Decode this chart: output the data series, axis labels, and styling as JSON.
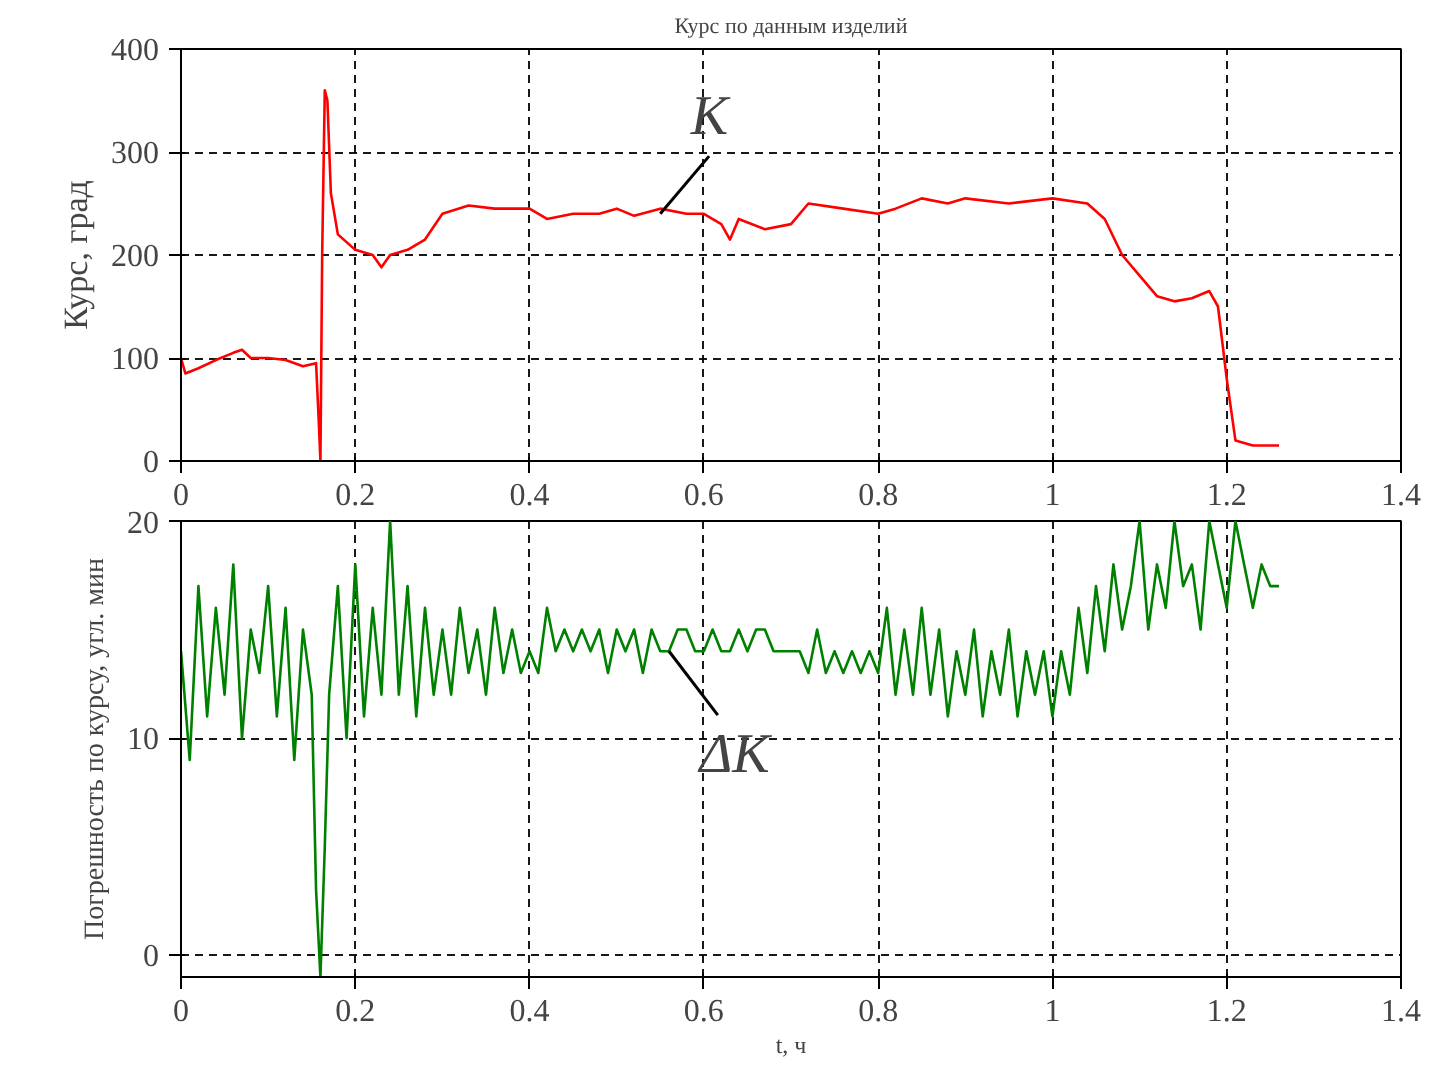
{
  "chart_data": [
    {
      "type": "line",
      "title": "Курс по данным изделий",
      "ylabel": "Курс, град",
      "color": "#ff0000",
      "grid": true,
      "line_style": "solid",
      "xlim": [
        0,
        1.4
      ],
      "ylim": [
        0,
        400
      ],
      "xticks": [
        0,
        0.2,
        0.4,
        0.6,
        0.8,
        1,
        1.2,
        1.4
      ],
      "yticks": [
        0,
        100,
        200,
        300,
        400
      ],
      "annotations": [
        {
          "text": "K",
          "x": 0.55,
          "y": 240
        }
      ],
      "x": [
        0,
        0.005,
        0.02,
        0.04,
        0.06,
        0.07,
        0.08,
        0.1,
        0.12,
        0.14,
        0.155,
        0.158,
        0.16,
        0.162,
        0.165,
        0.168,
        0.172,
        0.18,
        0.2,
        0.22,
        0.23,
        0.24,
        0.26,
        0.28,
        0.3,
        0.33,
        0.36,
        0.4,
        0.42,
        0.45,
        0.48,
        0.5,
        0.52,
        0.55,
        0.58,
        0.6,
        0.62,
        0.63,
        0.64,
        0.67,
        0.7,
        0.72,
        0.76,
        0.8,
        0.82,
        0.85,
        0.88,
        0.9,
        0.95,
        1.0,
        1.04,
        1.06,
        1.08,
        1.1,
        1.12,
        1.14,
        1.16,
        1.18,
        1.19,
        1.2,
        1.21,
        1.23,
        1.26
      ],
      "values": [
        100,
        85,
        90,
        98,
        105,
        108,
        100,
        100,
        98,
        92,
        95,
        40,
        0,
        200,
        360,
        350,
        260,
        220,
        205,
        200,
        188,
        200,
        205,
        215,
        240,
        248,
        245,
        245,
        235,
        240,
        240,
        245,
        238,
        245,
        240,
        240,
        230,
        215,
        235,
        225,
        230,
        250,
        245,
        240,
        245,
        255,
        250,
        255,
        250,
        255,
        250,
        235,
        200,
        180,
        160,
        155,
        158,
        165,
        150,
        80,
        20,
        15,
        15
      ]
    },
    {
      "type": "line",
      "xlabel": "t, ч",
      "ylabel": "Погрешность по курсу, угл. мин",
      "color": "#008000",
      "grid": true,
      "line_style": "solid",
      "xlim": [
        0,
        1.4
      ],
      "ylim": [
        -1,
        20
      ],
      "xticks": [
        0,
        0.2,
        0.4,
        0.6,
        0.8,
        1,
        1.2,
        1.4
      ],
      "yticks": [
        0,
        10,
        20
      ],
      "annotations": [
        {
          "text": "ΔK",
          "x": 0.56,
          "y": 14
        }
      ],
      "x": [
        0,
        0.01,
        0.02,
        0.03,
        0.04,
        0.05,
        0.06,
        0.07,
        0.08,
        0.09,
        0.1,
        0.11,
        0.12,
        0.13,
        0.14,
        0.15,
        0.155,
        0.16,
        0.165,
        0.17,
        0.18,
        0.19,
        0.2,
        0.21,
        0.22,
        0.23,
        0.24,
        0.25,
        0.26,
        0.27,
        0.28,
        0.29,
        0.3,
        0.31,
        0.32,
        0.33,
        0.34,
        0.35,
        0.36,
        0.37,
        0.38,
        0.39,
        0.4,
        0.41,
        0.42,
        0.43,
        0.44,
        0.45,
        0.46,
        0.47,
        0.48,
        0.49,
        0.5,
        0.51,
        0.52,
        0.53,
        0.54,
        0.55,
        0.56,
        0.57,
        0.58,
        0.59,
        0.6,
        0.61,
        0.62,
        0.63,
        0.64,
        0.65,
        0.66,
        0.67,
        0.68,
        0.69,
        0.7,
        0.71,
        0.72,
        0.73,
        0.74,
        0.75,
        0.76,
        0.77,
        0.78,
        0.79,
        0.8,
        0.81,
        0.82,
        0.83,
        0.84,
        0.85,
        0.86,
        0.87,
        0.88,
        0.89,
        0.9,
        0.91,
        0.92,
        0.93,
        0.94,
        0.95,
        0.96,
        0.97,
        0.98,
        0.99,
        1.0,
        1.01,
        1.02,
        1.03,
        1.04,
        1.05,
        1.06,
        1.07,
        1.08,
        1.09,
        1.1,
        1.11,
        1.12,
        1.13,
        1.14,
        1.15,
        1.16,
        1.17,
        1.18,
        1.19,
        1.2,
        1.21,
        1.22,
        1.23,
        1.24,
        1.25,
        1.26
      ],
      "values": [
        14,
        9,
        17,
        11,
        16,
        12,
        18,
        10,
        15,
        13,
        17,
        11,
        16,
        9,
        15,
        12,
        3,
        -1,
        5,
        12,
        17,
        10,
        18,
        11,
        16,
        12,
        20,
        12,
        17,
        11,
        16,
        12,
        15,
        12,
        16,
        13,
        15,
        12,
        16,
        13,
        15,
        13,
        14,
        13,
        16,
        14,
        15,
        14,
        15,
        14,
        15,
        13,
        15,
        14,
        15,
        13,
        15,
        14,
        14,
        15,
        15,
        14,
        14,
        15,
        14,
        14,
        15,
        14,
        15,
        15,
        14,
        14,
        14,
        14,
        13,
        15,
        13,
        14,
        13,
        14,
        13,
        14,
        13,
        16,
        12,
        15,
        12,
        16,
        12,
        15,
        11,
        14,
        12,
        15,
        11,
        14,
        12,
        15,
        11,
        14,
        12,
        14,
        11,
        14,
        12,
        16,
        13,
        17,
        14,
        18,
        15,
        17,
        20,
        15,
        18,
        16,
        20,
        17,
        18,
        15,
        20,
        18,
        16,
        20,
        18,
        16,
        18,
        17,
        17
      ]
    }
  ]
}
